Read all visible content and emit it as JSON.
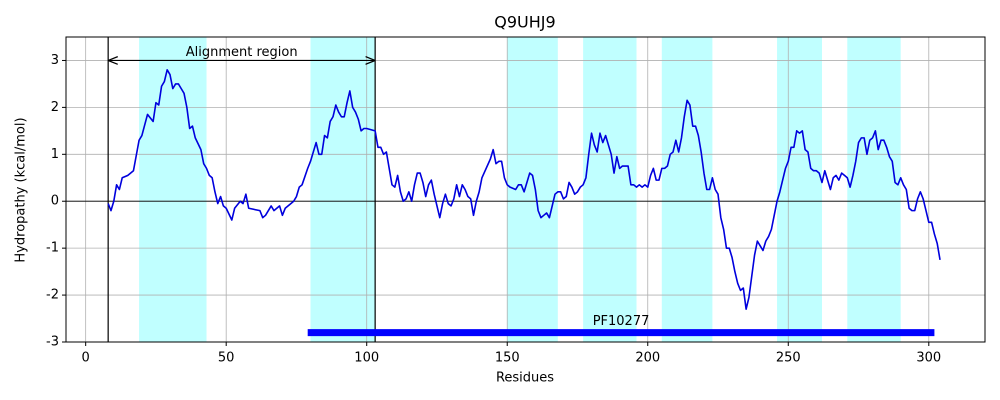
{
  "chart_data": {
    "type": "line",
    "title": "Q9UHJ9",
    "xlabel": "Residues",
    "ylabel": "Hydropathy (kcal/mol)",
    "x": [
      8,
      9,
      10,
      11,
      12,
      13,
      15,
      17,
      19,
      20,
      22,
      24,
      25,
      26,
      27,
      28,
      29,
      30,
      31,
      32,
      33,
      34,
      35,
      36,
      37,
      38,
      39,
      41,
      42,
      43,
      44,
      45,
      46,
      47,
      48,
      49,
      50,
      52,
      53,
      55,
      56,
      57,
      58,
      62,
      63,
      64,
      66,
      67,
      69,
      70,
      71,
      73,
      74,
      75,
      76,
      77,
      79,
      80,
      82,
      83,
      84,
      85,
      86,
      87,
      88,
      89,
      90,
      91,
      92,
      93,
      94,
      95,
      96,
      97,
      98,
      99,
      100,
      103,
      104,
      105,
      106,
      107,
      108,
      109,
      110,
      111,
      112,
      113,
      114,
      115,
      116,
      117,
      118,
      119,
      120,
      121,
      122,
      123,
      124,
      126,
      127,
      128,
      129,
      130,
      131,
      132,
      133,
      134,
      135,
      136,
      137,
      138,
      139,
      140,
      141,
      144,
      145,
      146,
      147,
      148,
      149,
      150,
      151,
      153,
      154,
      155,
      156,
      157,
      158,
      159,
      160,
      161,
      162,
      163,
      164,
      165,
      166,
      167,
      168,
      169,
      170,
      171,
      172,
      173,
      174,
      175,
      176,
      177,
      178,
      179,
      180,
      181,
      182,
      183,
      184,
      185,
      186,
      187,
      188,
      189,
      190,
      191,
      192,
      193,
      194,
      195,
      196,
      197,
      198,
      199,
      200,
      201,
      202,
      203,
      204,
      205,
      206,
      207,
      208,
      209,
      210,
      211,
      212,
      213,
      214,
      215,
      216,
      217,
      218,
      219,
      220,
      221,
      222,
      223,
      224,
      225,
      226,
      227,
      228,
      229,
      230,
      231,
      232,
      233,
      234,
      235,
      236,
      237,
      238,
      239,
      240,
      241,
      242,
      243,
      244,
      245,
      246,
      247,
      248,
      249,
      250,
      251,
      252,
      253,
      254,
      255,
      256,
      257,
      258,
      259,
      260,
      261,
      262,
      263,
      264,
      265,
      266,
      267,
      268,
      269,
      270,
      271,
      272,
      273,
      274,
      275,
      276,
      277,
      278,
      279,
      280,
      281,
      282,
      283,
      284,
      285,
      286,
      287,
      288,
      289,
      290,
      291,
      292,
      293,
      294,
      295,
      296,
      297,
      298,
      299,
      300,
      301,
      302,
      303,
      304
    ],
    "values": [
      -0.05,
      -0.2,
      0,
      0.35,
      0.25,
      0.5,
      0.55,
      0.65,
      1.3,
      1.4,
      1.85,
      1.7,
      2.1,
      2.05,
      2.45,
      2.55,
      2.8,
      2.7,
      2.4,
      2.5,
      2.5,
      2.4,
      2.3,
      2.0,
      1.55,
      1.6,
      1.35,
      1.1,
      0.8,
      0.7,
      0.55,
      0.5,
      0.2,
      -0.05,
      0.1,
      -0.1,
      -0.15,
      -0.4,
      -0.15,
      0,
      -0.05,
      0.15,
      -0.15,
      -0.2,
      -0.35,
      -0.3,
      -0.1,
      -0.2,
      -0.1,
      -0.3,
      -0.15,
      -0.05,
      0,
      0.1,
      0.3,
      0.35,
      0.7,
      0.85,
      1.25,
      1.0,
      1.0,
      1.4,
      1.35,
      1.7,
      1.8,
      2.05,
      1.9,
      1.8,
      1.8,
      2.1,
      2.35,
      2.0,
      1.9,
      1.75,
      1.5,
      1.55,
      1.55,
      1.5,
      1.15,
      1.15,
      1.0,
      1.05,
      0.7,
      0.35,
      0.3,
      0.55,
      0.2,
      0.0,
      0.05,
      0.2,
      0.0,
      0.35,
      0.6,
      0.6,
      0.4,
      0.1,
      0.35,
      0.45,
      0.15,
      -0.35,
      -0.05,
      0.15,
      -0.05,
      -0.1,
      0.05,
      0.35,
      0.1,
      0.35,
      0.25,
      0.1,
      0.05,
      -0.3,
      0.0,
      0.2,
      0.5,
      0.9,
      1.1,
      0.8,
      0.85,
      0.85,
      0.5,
      0.35,
      0.3,
      0.25,
      0.35,
      0.35,
      0.2,
      0.4,
      0.6,
      0.55,
      0.25,
      -0.2,
      -0.35,
      -0.3,
      -0.25,
      -0.35,
      -0.1,
      0.15,
      0.2,
      0.2,
      0.05,
      0.1,
      0.4,
      0.3,
      0.15,
      0.2,
      0.3,
      0.35,
      0.5,
      1.0,
      1.45,
      1.2,
      1.05,
      1.45,
      1.25,
      1.4,
      1.2,
      1.0,
      0.6,
      0.95,
      0.7,
      0.75,
      0.75,
      0.75,
      0.35,
      0.35,
      0.3,
      0.35,
      0.3,
      0.35,
      0.3,
      0.55,
      0.7,
      0.45,
      0.45,
      0.7,
      0.7,
      0.75,
      1.0,
      1.05,
      1.3,
      1.05,
      1.35,
      1.8,
      2.15,
      2.05,
      1.6,
      1.6,
      1.4,
      1.05,
      0.6,
      0.25,
      0.25,
      0.5,
      0.25,
      0.15,
      -0.35,
      -0.6,
      -1.0,
      -1.0,
      -1.2,
      -1.5,
      -1.75,
      -1.9,
      -1.85,
      -2.3,
      -2.05,
      -1.6,
      -1.15,
      -0.85,
      -0.95,
      -1.05,
      -0.85,
      -0.75,
      -0.6,
      -0.3,
      0.0,
      0.2,
      0.45,
      0.7,
      0.85,
      1.15,
      1.15,
      1.5,
      1.45,
      1.5,
      1.1,
      1.05,
      0.7,
      0.65,
      0.65,
      0.6,
      0.4,
      0.65,
      0.45,
      0.25,
      0.5,
      0.55,
      0.45,
      0.6,
      0.55,
      0.5,
      0.3,
      0.55,
      0.85,
      1.25,
      1.35,
      1.35,
      1.0,
      1.3,
      1.35,
      1.5,
      1.1,
      1.3,
      1.3,
      1.15,
      0.95,
      0.85,
      0.4,
      0.35,
      0.5,
      0.35,
      0.25,
      -0.15,
      -0.2,
      -0.2,
      0.05,
      0.2,
      0.05,
      -0.2,
      -0.45,
      -0.45,
      -0.7,
      -0.9,
      -1.25
    ],
    "color": "#0000dd",
    "regions": [
      [
        19,
        43
      ],
      [
        80,
        103
      ],
      [
        150,
        168
      ],
      [
        177,
        196
      ],
      [
        205,
        223
      ],
      [
        246,
        262
      ],
      [
        271,
        290
      ]
    ],
    "region_color": "#c0ffff",
    "alignment": {
      "label": "Alignment region",
      "start": 8,
      "end": 103,
      "y": 3
    },
    "domain": {
      "label": "PF10277",
      "start": 79,
      "end": 302,
      "y": -2.8,
      "color": "#0000ff"
    },
    "reference_line": 0,
    "xlim": [
      -7,
      320
    ],
    "ylim": [
      -3,
      3.5
    ],
    "xticks": [
      0,
      50,
      100,
      150,
      200,
      250,
      300
    ],
    "yticks": [
      -3,
      -2,
      -1,
      0,
      1,
      2,
      3
    ],
    "grid": true
  }
}
